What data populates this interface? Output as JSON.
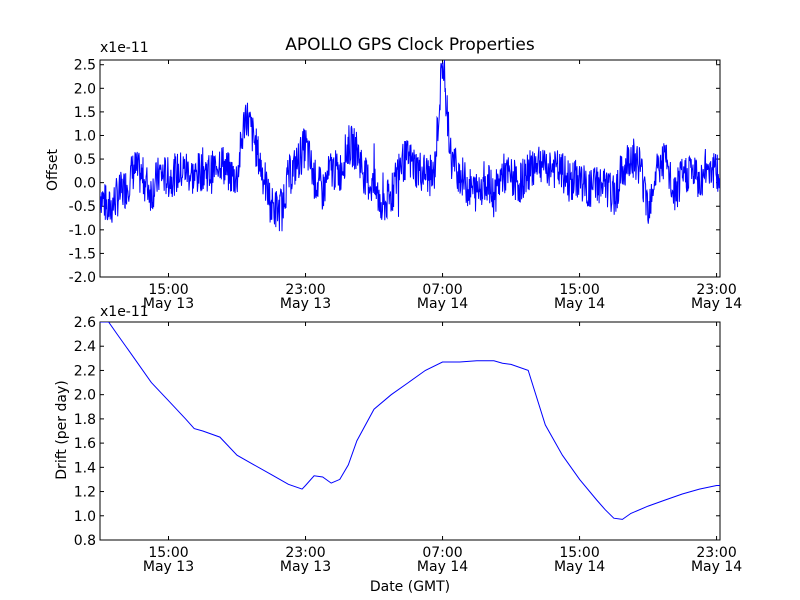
{
  "chart_data": [
    {
      "type": "line",
      "title": "APOLLO GPS Clock Properties",
      "xlabel": "",
      "ylabel": "Offset",
      "y_offset_label": "x1e-11",
      "ylim": [
        -2.0,
        2.6
      ],
      "yticks": [
        {
          "value": 2.5,
          "label": "2.5"
        },
        {
          "value": 2.0,
          "label": "2.0"
        },
        {
          "value": 1.5,
          "label": "1.5"
        },
        {
          "value": 1.0,
          "label": "1.0"
        },
        {
          "value": 0.5,
          "label": "0.5"
        },
        {
          "value": 0.0,
          "label": "0.0"
        },
        {
          "value": -0.5,
          "label": "-0.5"
        },
        {
          "value": -1.0,
          "label": "-1.0"
        },
        {
          "value": -1.5,
          "label": "-1.5"
        },
        {
          "value": -2.0,
          "label": "-2.0"
        }
      ],
      "xlim_hours": [
        11,
        47.2
      ],
      "xticks": [
        {
          "value": 15,
          "time": "15:00",
          "date": "May 13"
        },
        {
          "value": 23,
          "time": "23:00",
          "date": "May 13"
        },
        {
          "value": 31,
          "time": "07:00",
          "date": "May 14"
        },
        {
          "value": 39,
          "time": "15:00",
          "date": "May 14"
        },
        {
          "value": 47,
          "time": "23:00",
          "date": "May 14"
        }
      ],
      "series": [
        {
          "name": "Offset",
          "color": "#0000ff",
          "x": [
            11,
            11.5,
            12,
            12.5,
            13,
            13.5,
            14,
            14.5,
            15,
            15.5,
            16,
            16.5,
            17,
            17.5,
            18,
            18.5,
            19,
            19.5,
            20,
            20.5,
            21,
            21.5,
            22,
            22.5,
            23,
            23.5,
            24,
            24.5,
            25,
            25.5,
            26,
            26.5,
            27,
            27.5,
            28,
            28.5,
            29,
            29.5,
            30,
            30.5,
            31,
            31.5,
            32,
            32.5,
            33,
            33.5,
            34,
            34.5,
            35,
            35.5,
            36,
            36.5,
            37,
            37.5,
            38,
            38.5,
            39,
            39.5,
            40,
            40.5,
            41,
            41.5,
            42,
            42.5,
            43,
            43.5,
            44,
            44.5,
            45,
            45.5,
            46,
            46.5,
            47,
            47.2
          ],
          "values": [
            -0.2,
            -0.6,
            -0.3,
            -0.1,
            0.3,
            0.1,
            -0.2,
            0.2,
            0.1,
            0.2,
            0.3,
            0.1,
            0.3,
            0.2,
            0.5,
            0.2,
            0.1,
            1.5,
            0.9,
            0.2,
            -0.5,
            -0.6,
            0.1,
            0.4,
            0.8,
            0.1,
            -0.2,
            0.3,
            0.2,
            0.8,
            0.7,
            0.1,
            -0.1,
            -0.5,
            -0.3,
            0.4,
            0.5,
            0.3,
            0.2,
            0.1,
            2.6,
            0.5,
            0.2,
            -0.1,
            -0.2,
            0.1,
            -0.3,
            0.2,
            0.1,
            0.0,
            0.2,
            0.5,
            0.4,
            0.3,
            0.2,
            0.0,
            0.1,
            -0.2,
            0.0,
            -0.1,
            -0.3,
            0.2,
            0.6,
            0.4,
            -0.5,
            0.3,
            0.5,
            -0.3,
            0.1,
            0.3,
            0.0,
            0.4,
            0.2,
            0.0
          ]
        }
      ]
    },
    {
      "type": "line",
      "title": "",
      "xlabel": "Date (GMT)",
      "ylabel": "Drift (per day)",
      "y_offset_label": "x1e-11",
      "ylim": [
        0.8,
        2.6
      ],
      "yticks": [
        {
          "value": 2.6,
          "label": "2.6"
        },
        {
          "value": 2.4,
          "label": "2.4"
        },
        {
          "value": 2.2,
          "label": "2.2"
        },
        {
          "value": 2.0,
          "label": "2.0"
        },
        {
          "value": 1.8,
          "label": "1.8"
        },
        {
          "value": 1.6,
          "label": "1.6"
        },
        {
          "value": 1.4,
          "label": "1.4"
        },
        {
          "value": 1.2,
          "label": "1.2"
        },
        {
          "value": 1.0,
          "label": "1.0"
        },
        {
          "value": 0.8,
          "label": "0.8"
        }
      ],
      "xlim_hours": [
        11,
        47.2
      ],
      "xticks": [
        {
          "value": 15,
          "time": "15:00",
          "date": "May 13"
        },
        {
          "value": 23,
          "time": "23:00",
          "date": "May 13"
        },
        {
          "value": 31,
          "time": "07:00",
          "date": "May 14"
        },
        {
          "value": 39,
          "time": "15:00",
          "date": "May 14"
        },
        {
          "value": 47,
          "time": "23:00",
          "date": "May 14"
        }
      ],
      "series": [
        {
          "name": "Drift",
          "color": "#0000ff",
          "x": [
            11,
            11.5,
            12,
            13,
            14,
            15,
            16,
            16.5,
            17,
            18,
            19,
            20,
            21,
            22,
            22.8,
            23,
            23.5,
            24,
            24.5,
            25,
            25.5,
            26,
            27,
            28,
            29,
            30,
            31,
            32,
            33,
            34,
            34.5,
            35,
            36,
            37,
            38,
            39,
            40,
            40.5,
            41,
            41.5,
            42,
            43,
            44,
            45,
            46,
            47,
            47.2
          ],
          "values": [
            2.6,
            2.6,
            2.5,
            2.3,
            2.1,
            1.95,
            1.8,
            1.72,
            1.7,
            1.65,
            1.5,
            1.42,
            1.34,
            1.26,
            1.22,
            1.25,
            1.33,
            1.32,
            1.27,
            1.3,
            1.42,
            1.62,
            1.88,
            2.0,
            2.1,
            2.2,
            2.27,
            2.27,
            2.28,
            2.28,
            2.26,
            2.25,
            2.2,
            1.75,
            1.5,
            1.3,
            1.13,
            1.05,
            0.98,
            0.97,
            1.02,
            1.08,
            1.13,
            1.18,
            1.22,
            1.25,
            1.25
          ]
        }
      ]
    }
  ]
}
